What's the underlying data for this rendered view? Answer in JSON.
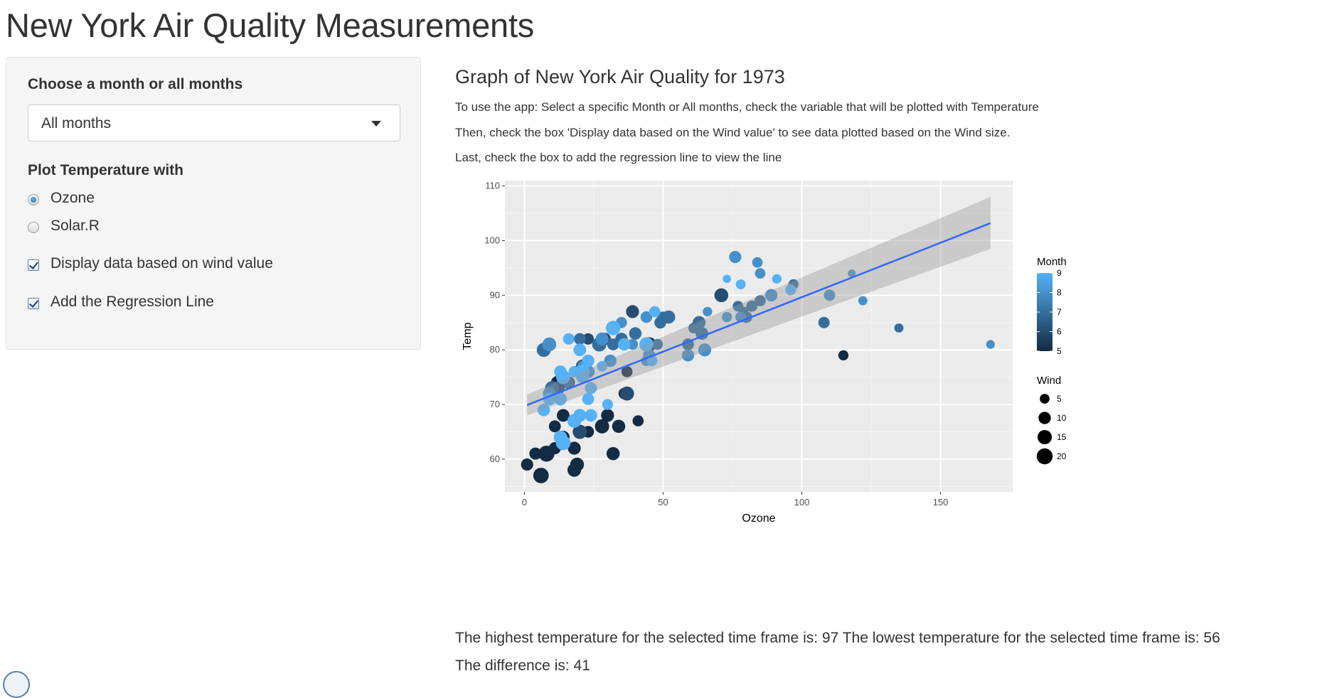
{
  "page": {
    "title": "New York Air Quality Measurements"
  },
  "sidebar": {
    "month_label": "Choose a month or all months",
    "month_select": {
      "value": "All months"
    },
    "plot_with_label": "Plot Temperature with",
    "radios": [
      {
        "label": "Ozone",
        "checked": true
      },
      {
        "label": "Solar.R",
        "checked": false
      }
    ],
    "checkboxes": [
      {
        "label": "Display data based on wind value",
        "checked": true
      },
      {
        "label": "Add the Regression Line",
        "checked": true
      }
    ]
  },
  "main": {
    "graph_title": "Graph of New York Air Quality for 1973",
    "instructions": [
      "To use the app: Select a specific Month or All months, check the variable that will be plotted with Temperature",
      "Then, check the box 'Display data based on the Wind value' to see data plotted based on the Wind size.",
      "Last, check the box to add the regression line to view the line"
    ],
    "result_line1": "The highest temperature for the selected time frame is: 97 The lowest temperature for the selected time frame is: 56",
    "result_line2": "The difference is: 41"
  },
  "chart_data": {
    "type": "scatter",
    "xlabel": "Ozone",
    "ylabel": "Temp",
    "xlim": [
      -7,
      176
    ],
    "ylim": [
      54,
      111
    ],
    "xticks": [
      0,
      50,
      100,
      150
    ],
    "yticks": [
      60,
      70,
      80,
      90,
      100,
      110
    ],
    "grid": true,
    "background": "#ebebeb",
    "legend_placement": "right",
    "color_legend": {
      "title": "Month",
      "ticks": [
        5,
        6,
        7,
        8,
        9
      ],
      "low_color": "#132b43",
      "high_color": "#56b1f7"
    },
    "size_legend": {
      "title": "Wind",
      "ticks": [
        5,
        10,
        15,
        20
      ]
    },
    "regression": {
      "line_color": "#3366ff",
      "band_color": "#999999",
      "x_range": [
        1,
        168
      ],
      "y_start": 69.9,
      "y_end": 103.2,
      "band_start": [
        68.0,
        71.8
      ],
      "band_end": [
        98.5,
        108.0
      ]
    },
    "points": [
      {
        "x": 41,
        "y": 67,
        "month": 5,
        "wind": 7.4
      },
      {
        "x": 36,
        "y": 72,
        "month": 5,
        "wind": 8
      },
      {
        "x": 12,
        "y": 74,
        "month": 5,
        "wind": 12.6
      },
      {
        "x": 18,
        "y": 62,
        "month": 5,
        "wind": 11.5
      },
      {
        "x": 28,
        "y": 66,
        "month": 5,
        "wind": 14.9
      },
      {
        "x": 23,
        "y": 65,
        "month": 5,
        "wind": 8.6
      },
      {
        "x": 19,
        "y": 59,
        "month": 5,
        "wind": 13.8
      },
      {
        "x": 8,
        "y": 61,
        "month": 5,
        "wind": 20.1
      },
      {
        "x": 7,
        "y": 69,
        "month": 5,
        "wind": 6.9
      },
      {
        "x": 16,
        "y": 74,
        "month": 5,
        "wind": 9.7
      },
      {
        "x": 11,
        "y": 66,
        "month": 5,
        "wind": 9.2
      },
      {
        "x": 14,
        "y": 68,
        "month": 5,
        "wind": 10.9
      },
      {
        "x": 18,
        "y": 58,
        "month": 5,
        "wind": 13.2
      },
      {
        "x": 14,
        "y": 64,
        "month": 5,
        "wind": 11.5
      },
      {
        "x": 34,
        "y": 66,
        "month": 5,
        "wind": 12
      },
      {
        "x": 6,
        "y": 57,
        "month": 5,
        "wind": 18.4
      },
      {
        "x": 30,
        "y": 68,
        "month": 5,
        "wind": 11.5
      },
      {
        "x": 11,
        "y": 62,
        "month": 5,
        "wind": 9.7
      },
      {
        "x": 1,
        "y": 59,
        "month": 5,
        "wind": 9.7
      },
      {
        "x": 11,
        "y": 73,
        "month": 5,
        "wind": 16.6
      },
      {
        "x": 4,
        "y": 61,
        "month": 5,
        "wind": 9.7
      },
      {
        "x": 32,
        "y": 61,
        "month": 5,
        "wind": 12
      },
      {
        "x": 45,
        "y": 81,
        "month": 5,
        "wind": 14.9
      },
      {
        "x": 115,
        "y": 79,
        "month": 5,
        "wind": 5.7
      },
      {
        "x": 37,
        "y": 76,
        "month": 5,
        "wind": 7.4
      },
      {
        "x": 29,
        "y": 82,
        "month": 6,
        "wind": 9.7
      },
      {
        "x": 71,
        "y": 90,
        "month": 6,
        "wind": 13.8
      },
      {
        "x": 39,
        "y": 87,
        "month": 6,
        "wind": 11.5
      },
      {
        "x": 23,
        "y": 82,
        "month": 6,
        "wind": 8
      },
      {
        "x": 21,
        "y": 77,
        "month": 6,
        "wind": 12.6
      },
      {
        "x": 37,
        "y": 72,
        "month": 6,
        "wind": 14.3
      },
      {
        "x": 20,
        "y": 65,
        "month": 6,
        "wind": 14.9
      },
      {
        "x": 12,
        "y": 73,
        "month": 6,
        "wind": 14.3
      },
      {
        "x": 13,
        "y": 76,
        "month": 6,
        "wind": 8
      },
      {
        "x": 135,
        "y": 84,
        "month": 7,
        "wind": 4.1
      },
      {
        "x": 49,
        "y": 85,
        "month": 7,
        "wind": 9.2
      },
      {
        "x": 32,
        "y": 81,
        "month": 7,
        "wind": 9.2
      },
      {
        "x": 64,
        "y": 83,
        "month": 7,
        "wind": 10.9
      },
      {
        "x": 40,
        "y": 83,
        "month": 7,
        "wind": 10.3
      },
      {
        "x": 77,
        "y": 88,
        "month": 7,
        "wind": 6.3
      },
      {
        "x": 97,
        "y": 92,
        "month": 7,
        "wind": 5.1
      },
      {
        "x": 97,
        "y": 92,
        "month": 7,
        "wind": 5.7
      },
      {
        "x": 85,
        "y": 89,
        "month": 7,
        "wind": 7.4
      },
      {
        "x": 10,
        "y": 73,
        "month": 7,
        "wind": 14.3
      },
      {
        "x": 27,
        "y": 81,
        "month": 7,
        "wind": 14.9
      },
      {
        "x": 7,
        "y": 80,
        "month": 7,
        "wind": 14.3
      },
      {
        "x": 48,
        "y": 81,
        "month": 7,
        "wind": 6.9
      },
      {
        "x": 35,
        "y": 82,
        "month": 7,
        "wind": 10.3
      },
      {
        "x": 61,
        "y": 84,
        "month": 7,
        "wind": 6.3
      },
      {
        "x": 79,
        "y": 87,
        "month": 7,
        "wind": 5.1
      },
      {
        "x": 63,
        "y": 85,
        "month": 7,
        "wind": 11.5
      },
      {
        "x": 16,
        "y": 74,
        "month": 7,
        "wind": 6.9
      },
      {
        "x": 80,
        "y": 86,
        "month": 7,
        "wind": 8.6
      },
      {
        "x": 108,
        "y": 85,
        "month": 7,
        "wind": 8
      },
      {
        "x": 20,
        "y": 82,
        "month": 7,
        "wind": 8.6
      },
      {
        "x": 52,
        "y": 86,
        "month": 7,
        "wind": 12
      },
      {
        "x": 82,
        "y": 88,
        "month": 7,
        "wind": 7.4
      },
      {
        "x": 50,
        "y": 86,
        "month": 7,
        "wind": 7.4
      },
      {
        "x": 64,
        "y": 83,
        "month": 7,
        "wind": 7.4
      },
      {
        "x": 59,
        "y": 81,
        "month": 7,
        "wind": 9.2
      },
      {
        "x": 39,
        "y": 81,
        "month": 8,
        "wind": 6.9
      },
      {
        "x": 9,
        "y": 81,
        "month": 8,
        "wind": 13.8
      },
      {
        "x": 16,
        "y": 82,
        "month": 8,
        "wind": 7.4
      },
      {
        "x": 78,
        "y": 86,
        "month": 8,
        "wind": 6.9
      },
      {
        "x": 35,
        "y": 85,
        "month": 8,
        "wind": 7.4
      },
      {
        "x": 66,
        "y": 87,
        "month": 8,
        "wind": 4.6
      },
      {
        "x": 122,
        "y": 89,
        "month": 8,
        "wind": 4
      },
      {
        "x": 89,
        "y": 90,
        "month": 8,
        "wind": 10.3
      },
      {
        "x": 110,
        "y": 90,
        "month": 8,
        "wind": 8
      },
      {
        "x": 44,
        "y": 86,
        "month": 8,
        "wind": 8.6
      },
      {
        "x": 28,
        "y": 82,
        "month": 8,
        "wind": 11.5
      },
      {
        "x": 65,
        "y": 80,
        "month": 8,
        "wind": 11.5
      },
      {
        "x": 22,
        "y": 77,
        "month": 8,
        "wind": 11.5
      },
      {
        "x": 59,
        "y": 79,
        "month": 8,
        "wind": 9.7
      },
      {
        "x": 23,
        "y": 76,
        "month": 8,
        "wind": 11.5
      },
      {
        "x": 31,
        "y": 78,
        "month": 8,
        "wind": 10.3
      },
      {
        "x": 44,
        "y": 78,
        "month": 8,
        "wind": 6.3
      },
      {
        "x": 21,
        "y": 77,
        "month": 8,
        "wind": 7.4
      },
      {
        "x": 9,
        "y": 72,
        "month": 8,
        "wind": 10.9
      },
      {
        "x": 45,
        "y": 79,
        "month": 8,
        "wind": 10.3
      },
      {
        "x": 168,
        "y": 81,
        "month": 8,
        "wind": 3.4
      },
      {
        "x": 73,
        "y": 86,
        "month": 8,
        "wind": 5.7
      },
      {
        "x": 76,
        "y": 97,
        "month": 8,
        "wind": 9.7
      },
      {
        "x": 118,
        "y": 94,
        "month": 8,
        "wind": 2.3
      },
      {
        "x": 84,
        "y": 96,
        "month": 8,
        "wind": 6.3
      },
      {
        "x": 85,
        "y": 94,
        "month": 8,
        "wind": 6.3
      },
      {
        "x": 96,
        "y": 91,
        "month": 9,
        "wind": 6.9
      },
      {
        "x": 78,
        "y": 92,
        "month": 9,
        "wind": 5.1
      },
      {
        "x": 73,
        "y": 93,
        "month": 9,
        "wind": 2.8
      },
      {
        "x": 91,
        "y": 93,
        "month": 9,
        "wind": 4.6
      },
      {
        "x": 47,
        "y": 87,
        "month": 9,
        "wind": 7.4
      },
      {
        "x": 32,
        "y": 84,
        "month": 9,
        "wind": 15.5
      },
      {
        "x": 20,
        "y": 80,
        "month": 9,
        "wind": 10.9
      },
      {
        "x": 23,
        "y": 78,
        "month": 9,
        "wind": 10.3
      },
      {
        "x": 21,
        "y": 75,
        "month": 9,
        "wind": 10.9
      },
      {
        "x": 24,
        "y": 73,
        "month": 9,
        "wind": 9.7
      },
      {
        "x": 44,
        "y": 81,
        "month": 9,
        "wind": 14.9
      },
      {
        "x": 21,
        "y": 76,
        "month": 9,
        "wind": 15.5
      },
      {
        "x": 28,
        "y": 77,
        "month": 9,
        "wind": 6.3
      },
      {
        "x": 9,
        "y": 71,
        "month": 9,
        "wind": 10.9
      },
      {
        "x": 13,
        "y": 71,
        "month": 9,
        "wind": 11.5
      },
      {
        "x": 46,
        "y": 78,
        "month": 9,
        "wind": 6.9
      },
      {
        "x": 18,
        "y": 67,
        "month": 9,
        "wind": 13.8
      },
      {
        "x": 13,
        "y": 76,
        "month": 9,
        "wind": 10.3
      },
      {
        "x": 24,
        "y": 68,
        "month": 9,
        "wind": 10.3
      },
      {
        "x": 16,
        "y": 82,
        "month": 9,
        "wind": 8
      },
      {
        "x": 13,
        "y": 64,
        "month": 9,
        "wind": 12.6
      },
      {
        "x": 23,
        "y": 71,
        "month": 9,
        "wind": 9.2
      },
      {
        "x": 36,
        "y": 81,
        "month": 9,
        "wind": 10.3
      },
      {
        "x": 7,
        "y": 69,
        "month": 9,
        "wind": 10.3
      },
      {
        "x": 14,
        "y": 63,
        "month": 9,
        "wind": 16.6
      },
      {
        "x": 30,
        "y": 70,
        "month": 9,
        "wind": 6.9
      },
      {
        "x": 14,
        "y": 75,
        "month": 9,
        "wind": 14.3
      },
      {
        "x": 18,
        "y": 76,
        "month": 9,
        "wind": 8
      },
      {
        "x": 20,
        "y": 68,
        "month": 9,
        "wind": 11.5
      }
    ]
  }
}
